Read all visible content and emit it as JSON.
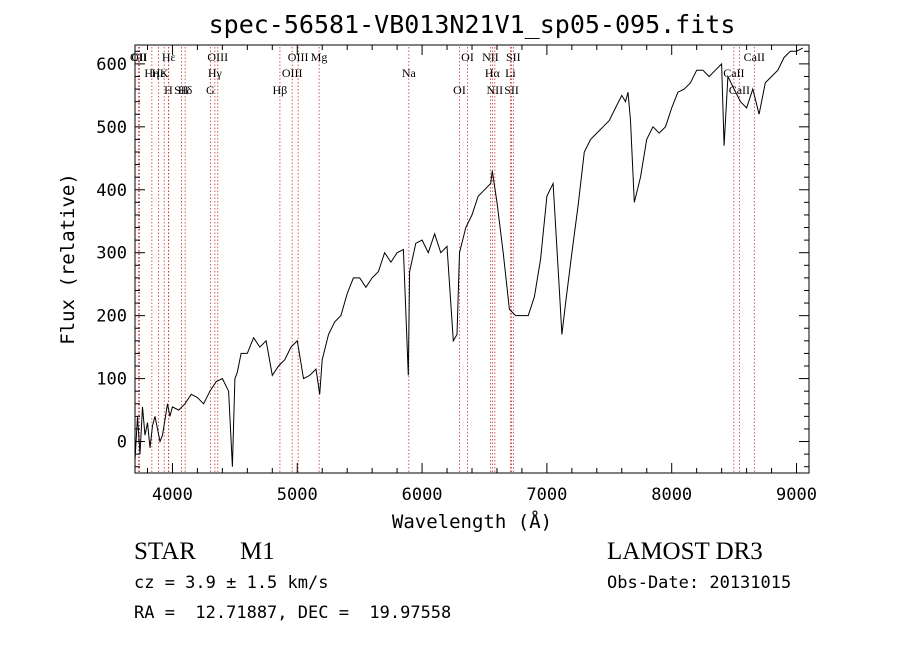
{
  "chart_data": {
    "type": "line",
    "title": "spec-56581-VB013N21V1_sp05-095.fits",
    "xlabel": "Wavelength (Å)",
    "ylabel": "Flux (relative)",
    "xlim": [
      3700,
      9100
    ],
    "ylim": [
      -50,
      630
    ],
    "xticks": [
      4000,
      5000,
      6000,
      7000,
      8000,
      9000
    ],
    "yticks": [
      0,
      100,
      200,
      300,
      400,
      500,
      600
    ],
    "grid": false,
    "series": [
      {
        "name": "flux",
        "color": "#000000",
        "x": [
          3700,
          3720,
          3740,
          3760,
          3780,
          3800,
          3820,
          3840,
          3860,
          3880,
          3900,
          3920,
          3940,
          3960,
          3980,
          4000,
          4050,
          4100,
          4150,
          4200,
          4250,
          4300,
          4350,
          4400,
          4450,
          4480,
          4500,
          4520,
          4550,
          4600,
          4650,
          4700,
          4750,
          4800,
          4850,
          4900,
          4950,
          5000,
          5050,
          5100,
          5150,
          5180,
          5200,
          5250,
          5300,
          5350,
          5400,
          5450,
          5500,
          5550,
          5600,
          5650,
          5700,
          5750,
          5800,
          5850,
          5890,
          5900,
          5950,
          6000,
          6050,
          6100,
          6150,
          6200,
          6250,
          6280,
          6300,
          6350,
          6400,
          6450,
          6500,
          6550,
          6563,
          6600,
          6650,
          6700,
          6750,
          6800,
          6850,
          6900,
          6950,
          7000,
          7050,
          7100,
          7120,
          7150,
          7200,
          7250,
          7300,
          7350,
          7400,
          7450,
          7500,
          7550,
          7600,
          7630,
          7650,
          7670,
          7700,
          7750,
          7800,
          7850,
          7900,
          7950,
          8000,
          8050,
          8100,
          8150,
          8200,
          8250,
          8300,
          8350,
          8400,
          8420,
          8450,
          8500,
          8550,
          8600,
          8650,
          8700,
          8750,
          8800,
          8850,
          8900,
          8950,
          9000,
          9050
        ],
        "y": [
          -30,
          40,
          -20,
          55,
          10,
          30,
          -10,
          25,
          40,
          20,
          0,
          10,
          35,
          60,
          40,
          55,
          50,
          60,
          75,
          70,
          60,
          80,
          95,
          100,
          80,
          -40,
          100,
          110,
          140,
          140,
          165,
          150,
          160,
          105,
          120,
          130,
          150,
          160,
          100,
          105,
          115,
          75,
          130,
          170,
          190,
          200,
          235,
          260,
          260,
          245,
          260,
          270,
          300,
          285,
          300,
          305,
          105,
          270,
          315,
          320,
          300,
          330,
          300,
          310,
          160,
          170,
          300,
          340,
          360,
          390,
          400,
          410,
          430,
          380,
          300,
          210,
          200,
          200,
          200,
          230,
          290,
          390,
          410,
          240,
          170,
          220,
          300,
          375,
          460,
          480,
          490,
          500,
          510,
          530,
          550,
          540,
          555,
          510,
          380,
          420,
          480,
          500,
          490,
          500,
          530,
          555,
          560,
          570,
          590,
          590,
          580,
          590,
          600,
          470,
          580,
          560,
          540,
          530,
          560,
          520,
          570,
          580,
          590,
          610,
          620,
          620,
          625
        ]
      }
    ],
    "lines": [
      {
        "name": "Hε",
        "wavelength": 3970
      },
      {
        "name": "K",
        "wavelength": 3934
      },
      {
        "name": "Hδ",
        "wavelength": 4102
      },
      {
        "name": "OII",
        "wavelength": 3727
      },
      {
        "name": "Hε",
        "wavelength": 3889
      },
      {
        "name": "SII",
        "wavelength": 4072
      },
      {
        "name": "CII",
        "wavelength": 3735
      },
      {
        "name": "Hη",
        "wavelength": 3835
      },
      {
        "name": "H",
        "wavelength": 3968
      },
      {
        "name": "OIII",
        "wavelength": 4363
      },
      {
        "name": "Hγ",
        "wavelength": 4340
      },
      {
        "name": "G",
        "wavelength": 4304
      },
      {
        "name": "OIII",
        "wavelength": 5007
      },
      {
        "name": "OIII",
        "wavelength": 4959
      },
      {
        "name": "Hβ",
        "wavelength": 4861
      },
      {
        "name": "Mg",
        "wavelength": 5175
      },
      {
        "name": "Na",
        "wavelength": 5894
      },
      {
        "name": "OI",
        "wavelength": 6300
      },
      {
        "name": "OI",
        "wavelength": 6364
      },
      {
        "name": "Hα",
        "wavelength": 6563
      },
      {
        "name": "SII",
        "wavelength": 6717
      },
      {
        "name": "NII",
        "wavelength": 6548
      },
      {
        "name": "Li",
        "wavelength": 6708
      },
      {
        "name": "NII",
        "wavelength": 6583
      },
      {
        "name": "SII",
        "wavelength": 6731
      },
      {
        "name": "CaII",
        "wavelength": 8498
      },
      {
        "name": "CaII",
        "wavelength": 8542
      },
      {
        "name": "CaII",
        "wavelength": 8662
      }
    ]
  },
  "info": {
    "class": "STAR",
    "subclass": "M1",
    "survey": "LAMOST DR3",
    "cz": "cz = 3.9 ± 1.5 km/s",
    "obs_date": "Obs-Date: 20131015",
    "coords": "RA =  12.71887, DEC =  19.97558"
  },
  "colors": {
    "line_marker": "#cc3333",
    "spectrum": "#000000",
    "axis": "#000000"
  }
}
